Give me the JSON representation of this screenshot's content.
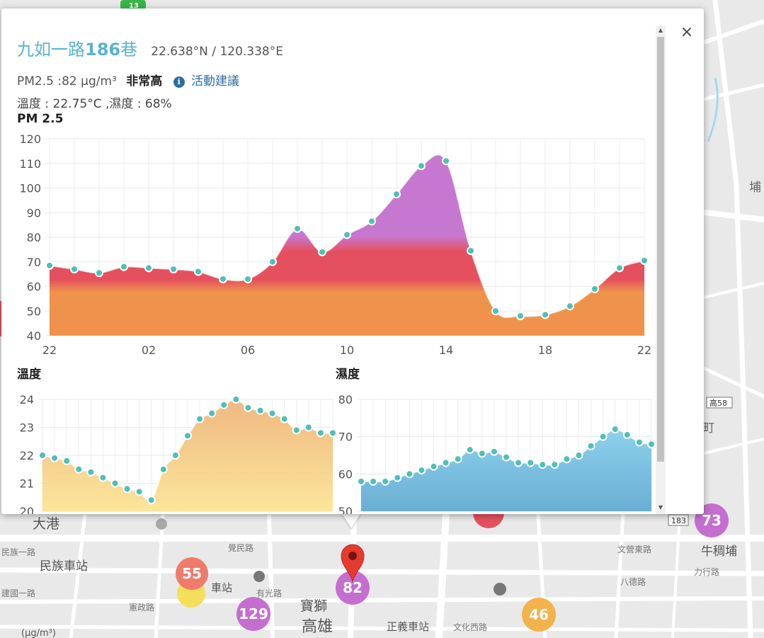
{
  "map": {
    "labels": {
      "dagang": "大港",
      "minzu_station": "民族車站",
      "minzu_1st_rd": "民族一路",
      "gaoxiong": "高雄",
      "baoshi": "寶獅",
      "zhengyi_station": "正義車站",
      "wenhua_west_rd": "文化西路",
      "niuchoupu": "牛稠埔",
      "station_fragment": "車站",
      "jueming_rd": "覺民路",
      "youguang_rd": "有光路",
      "xianzheng_rd": "憲政路",
      "jianguo_1st_rd": "建國一路",
      "wenying_east_rd": "文營東路",
      "bade_rd": "八德路",
      "lixing_rd": "力行路",
      "highway_183": "183",
      "highway_58": "高58",
      "road_13": "13",
      "unit": "(μg/m³)",
      "edge_label_pu": "埔",
      "edge_label_ding": "町"
    },
    "markers": [
      {
        "name": "marker-55",
        "value": "55",
        "color": "#ef7b6c"
      },
      {
        "name": "marker-129",
        "value": "129",
        "color": "#c46fcf"
      },
      {
        "name": "marker-82",
        "value": "82",
        "color": "#c46fcf"
      },
      {
        "name": "marker-46",
        "value": "46",
        "color": "#f2b24c"
      },
      {
        "name": "marker-73",
        "value": "73",
        "color": "#c46fcf"
      }
    ],
    "colors": {
      "background": "#e9e9e9",
      "road": "#ffffff",
      "river": "#a6d8f0",
      "pin": "#e53b2f"
    }
  },
  "popup": {
    "title_prefix": "九如一路",
    "title_bold": "186",
    "title_suffix": "巷",
    "coordinates": "22.638°N / 120.338°E",
    "pm_reading": "PM2.5 :82 μg/m³",
    "pm_level": "非常高",
    "info_glyph": "i",
    "advice_link": "活動建議",
    "conditions": "溫度 : 22.75°C ,濕度 : 68%",
    "close_glyph": "×"
  },
  "chart_data": [
    {
      "type": "area",
      "title": "PM 2.5",
      "x_tick_labels": [
        "22",
        "02",
        "06",
        "10",
        "14",
        "18",
        "22"
      ],
      "ylim": [
        40,
        120
      ],
      "yticks": [
        40,
        50,
        60,
        70,
        80,
        90,
        100,
        110,
        120
      ],
      "grid": true,
      "hours": [
        "22",
        "23",
        "00",
        "01",
        "02",
        "03",
        "04",
        "05",
        "06",
        "07",
        "08",
        "09",
        "10",
        "11",
        "12",
        "13",
        "14",
        "15",
        "16",
        "17",
        "18",
        "19",
        "20",
        "21",
        "22"
      ],
      "values": [
        68.5,
        67,
        65.5,
        68,
        67.5,
        67,
        66,
        63,
        63,
        70,
        83.5,
        74,
        81,
        86.5,
        97.5,
        109,
        111,
        74.5,
        50,
        48,
        48.5,
        52,
        59,
        67.5,
        70.5
      ],
      "colors": {
        "fill_low": "#ef934c",
        "fill_mid": "#e5505e",
        "fill_high": "#c677cf",
        "point": "#4fbfb8"
      }
    },
    {
      "type": "area",
      "title": "溫度",
      "ylim": [
        20,
        24
      ],
      "yticks": [
        20,
        21,
        22,
        23,
        24
      ],
      "grid": true,
      "values": [
        22,
        21.9,
        21.8,
        21.5,
        21.4,
        21.2,
        21,
        20.8,
        20.7,
        20.4,
        21.5,
        22,
        22.7,
        23.3,
        23.5,
        23.8,
        24,
        23.7,
        23.6,
        23.5,
        23.3,
        22.9,
        23,
        22.8,
        22.8
      ],
      "colors": {
        "fill_top": "#eeb882",
        "fill_bottom": "#fce69a",
        "point": "#4fbfb8"
      }
    },
    {
      "type": "area",
      "title": "濕度",
      "ylim": [
        50,
        80
      ],
      "yticks": [
        50,
        60,
        70,
        80
      ],
      "grid": true,
      "values": [
        58,
        58,
        58,
        59,
        60,
        61,
        62,
        63,
        64,
        66.5,
        65.5,
        66,
        64.5,
        63,
        63,
        62.5,
        62.5,
        64,
        65,
        67.5,
        70,
        72,
        70.5,
        68.5,
        68
      ],
      "colors": {
        "fill_top": "#8dd1ec",
        "fill_bottom": "#6aaed4",
        "point": "#4fbfb8"
      }
    }
  ]
}
